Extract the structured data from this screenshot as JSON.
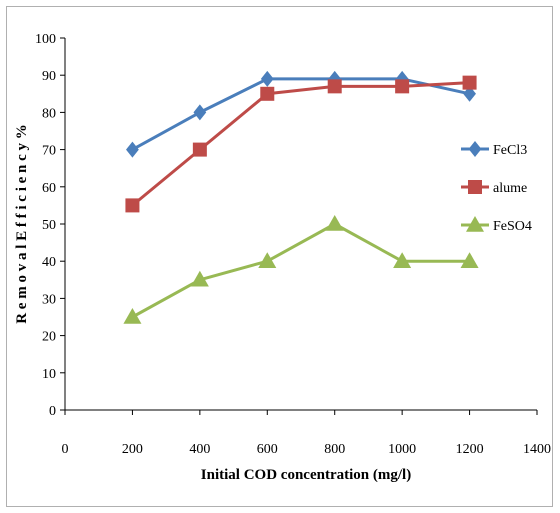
{
  "chart_data": {
    "type": "line",
    "title": "",
    "xlabel": "Initial COD concentration (mg/l)",
    "ylabel": "R e m o v a l E f f i c i e n c y %",
    "xlim": [
      0,
      1400
    ],
    "ylim": [
      0,
      100
    ],
    "xticks": [
      0,
      200,
      400,
      600,
      800,
      1000,
      1200,
      1400
    ],
    "yticks": [
      0,
      10,
      20,
      30,
      40,
      50,
      60,
      70,
      80,
      90,
      100
    ],
    "grid": false,
    "legend_position": "right",
    "x": [
      200,
      400,
      600,
      800,
      1000,
      1200
    ],
    "series": [
      {
        "name": "FeCl3",
        "values": [
          70,
          80,
          89,
          89,
          89,
          85
        ],
        "color": "#4a7ebb",
        "marker": "diamond"
      },
      {
        "name": "alume",
        "values": [
          55,
          70,
          85,
          87,
          87,
          88
        ],
        "color": "#be4b48",
        "marker": "square"
      },
      {
        "name": "FeSO4",
        "values": [
          25,
          35,
          40,
          50,
          40,
          40
        ],
        "color": "#98b954",
        "marker": "triangle"
      }
    ]
  }
}
